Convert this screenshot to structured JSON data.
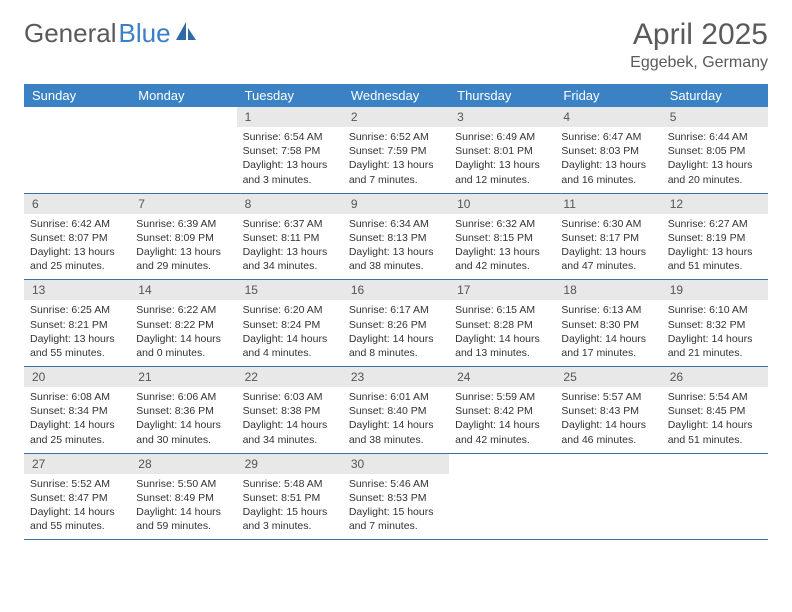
{
  "logo": {
    "word1": "General",
    "word2": "Blue",
    "icon_fill": "#2f6aa8"
  },
  "title": "April 2025",
  "location": "Eggebek, Germany",
  "colors": {
    "header_bg": "#3b82c4",
    "header_text": "#ffffff",
    "daynum_bg": "#e8e8e8",
    "border": "#3b6fa8",
    "text": "#333333",
    "title_color": "#5a5a5a"
  },
  "day_headers": [
    "Sunday",
    "Monday",
    "Tuesday",
    "Wednesday",
    "Thursday",
    "Friday",
    "Saturday"
  ],
  "weeks": [
    [
      null,
      null,
      {
        "n": "1",
        "sunrise": "6:54 AM",
        "sunset": "7:58 PM",
        "dl": "13 hours and 3 minutes."
      },
      {
        "n": "2",
        "sunrise": "6:52 AM",
        "sunset": "7:59 PM",
        "dl": "13 hours and 7 minutes."
      },
      {
        "n": "3",
        "sunrise": "6:49 AM",
        "sunset": "8:01 PM",
        "dl": "13 hours and 12 minutes."
      },
      {
        "n": "4",
        "sunrise": "6:47 AM",
        "sunset": "8:03 PM",
        "dl": "13 hours and 16 minutes."
      },
      {
        "n": "5",
        "sunrise": "6:44 AM",
        "sunset": "8:05 PM",
        "dl": "13 hours and 20 minutes."
      }
    ],
    [
      {
        "n": "6",
        "sunrise": "6:42 AM",
        "sunset": "8:07 PM",
        "dl": "13 hours and 25 minutes."
      },
      {
        "n": "7",
        "sunrise": "6:39 AM",
        "sunset": "8:09 PM",
        "dl": "13 hours and 29 minutes."
      },
      {
        "n": "8",
        "sunrise": "6:37 AM",
        "sunset": "8:11 PM",
        "dl": "13 hours and 34 minutes."
      },
      {
        "n": "9",
        "sunrise": "6:34 AM",
        "sunset": "8:13 PM",
        "dl": "13 hours and 38 minutes."
      },
      {
        "n": "10",
        "sunrise": "6:32 AM",
        "sunset": "8:15 PM",
        "dl": "13 hours and 42 minutes."
      },
      {
        "n": "11",
        "sunrise": "6:30 AM",
        "sunset": "8:17 PM",
        "dl": "13 hours and 47 minutes."
      },
      {
        "n": "12",
        "sunrise": "6:27 AM",
        "sunset": "8:19 PM",
        "dl": "13 hours and 51 minutes."
      }
    ],
    [
      {
        "n": "13",
        "sunrise": "6:25 AM",
        "sunset": "8:21 PM",
        "dl": "13 hours and 55 minutes."
      },
      {
        "n": "14",
        "sunrise": "6:22 AM",
        "sunset": "8:22 PM",
        "dl": "14 hours and 0 minutes."
      },
      {
        "n": "15",
        "sunrise": "6:20 AM",
        "sunset": "8:24 PM",
        "dl": "14 hours and 4 minutes."
      },
      {
        "n": "16",
        "sunrise": "6:17 AM",
        "sunset": "8:26 PM",
        "dl": "14 hours and 8 minutes."
      },
      {
        "n": "17",
        "sunrise": "6:15 AM",
        "sunset": "8:28 PM",
        "dl": "14 hours and 13 minutes."
      },
      {
        "n": "18",
        "sunrise": "6:13 AM",
        "sunset": "8:30 PM",
        "dl": "14 hours and 17 minutes."
      },
      {
        "n": "19",
        "sunrise": "6:10 AM",
        "sunset": "8:32 PM",
        "dl": "14 hours and 21 minutes."
      }
    ],
    [
      {
        "n": "20",
        "sunrise": "6:08 AM",
        "sunset": "8:34 PM",
        "dl": "14 hours and 25 minutes."
      },
      {
        "n": "21",
        "sunrise": "6:06 AM",
        "sunset": "8:36 PM",
        "dl": "14 hours and 30 minutes."
      },
      {
        "n": "22",
        "sunrise": "6:03 AM",
        "sunset": "8:38 PM",
        "dl": "14 hours and 34 minutes."
      },
      {
        "n": "23",
        "sunrise": "6:01 AM",
        "sunset": "8:40 PM",
        "dl": "14 hours and 38 minutes."
      },
      {
        "n": "24",
        "sunrise": "5:59 AM",
        "sunset": "8:42 PM",
        "dl": "14 hours and 42 minutes."
      },
      {
        "n": "25",
        "sunrise": "5:57 AM",
        "sunset": "8:43 PM",
        "dl": "14 hours and 46 minutes."
      },
      {
        "n": "26",
        "sunrise": "5:54 AM",
        "sunset": "8:45 PM",
        "dl": "14 hours and 51 minutes."
      }
    ],
    [
      {
        "n": "27",
        "sunrise": "5:52 AM",
        "sunset": "8:47 PM",
        "dl": "14 hours and 55 minutes."
      },
      {
        "n": "28",
        "sunrise": "5:50 AM",
        "sunset": "8:49 PM",
        "dl": "14 hours and 59 minutes."
      },
      {
        "n": "29",
        "sunrise": "5:48 AM",
        "sunset": "8:51 PM",
        "dl": "15 hours and 3 minutes."
      },
      {
        "n": "30",
        "sunrise": "5:46 AM",
        "sunset": "8:53 PM",
        "dl": "15 hours and 7 minutes."
      },
      null,
      null,
      null
    ]
  ],
  "labels": {
    "sunrise_prefix": "Sunrise: ",
    "sunset_prefix": "Sunset: ",
    "daylight_prefix": "Daylight: "
  }
}
